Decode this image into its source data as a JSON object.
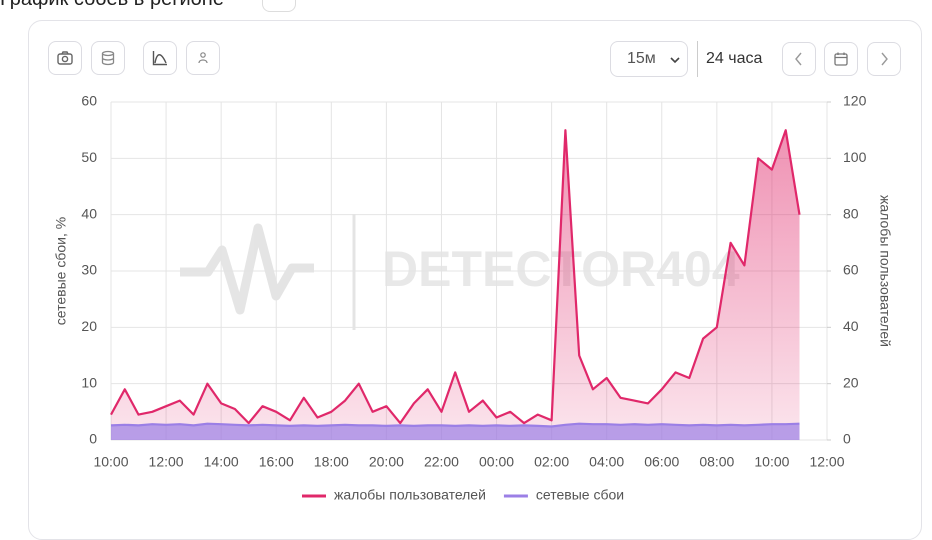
{
  "header": {
    "title": "График сбоев в регионе"
  },
  "toolbar": {
    "interval": "15м",
    "range": "24 часа"
  },
  "watermark": "DETECTOR404",
  "chart_data": {
    "type": "line",
    "y_label": "сетевые сбои, %",
    "y2_label": "жалобы пользователей",
    "x": [
      "10:00",
      null,
      null,
      null,
      "12:00",
      null,
      null,
      null,
      "14:00",
      null,
      null,
      null,
      "16:00",
      null,
      null,
      null,
      "18:00",
      null,
      null,
      null,
      "20:00",
      null,
      null,
      null,
      "22:00",
      null,
      null,
      null,
      "00:00",
      null,
      null,
      null,
      "02:00",
      null,
      null,
      null,
      "04:00",
      null,
      null,
      null,
      "06:00",
      null,
      null,
      null,
      "08:00",
      null,
      null,
      null,
      "10:00",
      null,
      null,
      null,
      "12:00"
    ],
    "series": [
      {
        "name": "жалобы пользователей",
        "color": "#e0286a",
        "axis": "y2",
        "values": [
          9,
          18,
          9,
          10,
          12,
          14,
          9,
          20,
          13,
          11,
          6,
          12,
          10,
          7,
          15,
          8,
          10,
          14,
          20,
          10,
          12,
          6,
          13,
          18,
          10,
          24,
          10,
          14,
          8,
          10,
          6,
          9,
          7,
          110,
          30,
          18,
          22,
          15,
          14,
          13,
          18,
          24,
          22,
          36,
          40,
          70,
          62,
          100,
          96,
          110,
          80,
          null,
          null
        ]
      },
      {
        "name": "сетевые сбои",
        "color": "#9b7fe6",
        "values": [
          2.6,
          2.7,
          2.6,
          2.8,
          2.7,
          2.8,
          2.6,
          2.9,
          2.8,
          2.7,
          2.6,
          2.7,
          2.6,
          2.5,
          2.6,
          2.5,
          2.6,
          2.7,
          2.6,
          2.6,
          2.5,
          2.6,
          2.5,
          2.6,
          2.6,
          2.5,
          2.6,
          2.5,
          2.6,
          2.5,
          2.6,
          2.5,
          2.4,
          2.7,
          2.9,
          2.8,
          2.8,
          2.7,
          2.8,
          2.7,
          2.8,
          2.7,
          2.6,
          2.7,
          2.6,
          2.7,
          2.6,
          2.7,
          2.8,
          2.8,
          2.9,
          null,
          null
        ]
      }
    ],
    "ylim": [
      0,
      60
    ],
    "yticks": [
      0,
      10,
      20,
      30,
      40,
      50,
      60
    ],
    "y2lim": [
      0,
      120
    ],
    "y2ticks": [
      0,
      20,
      40,
      60,
      80,
      100,
      120
    ],
    "grid": true
  }
}
